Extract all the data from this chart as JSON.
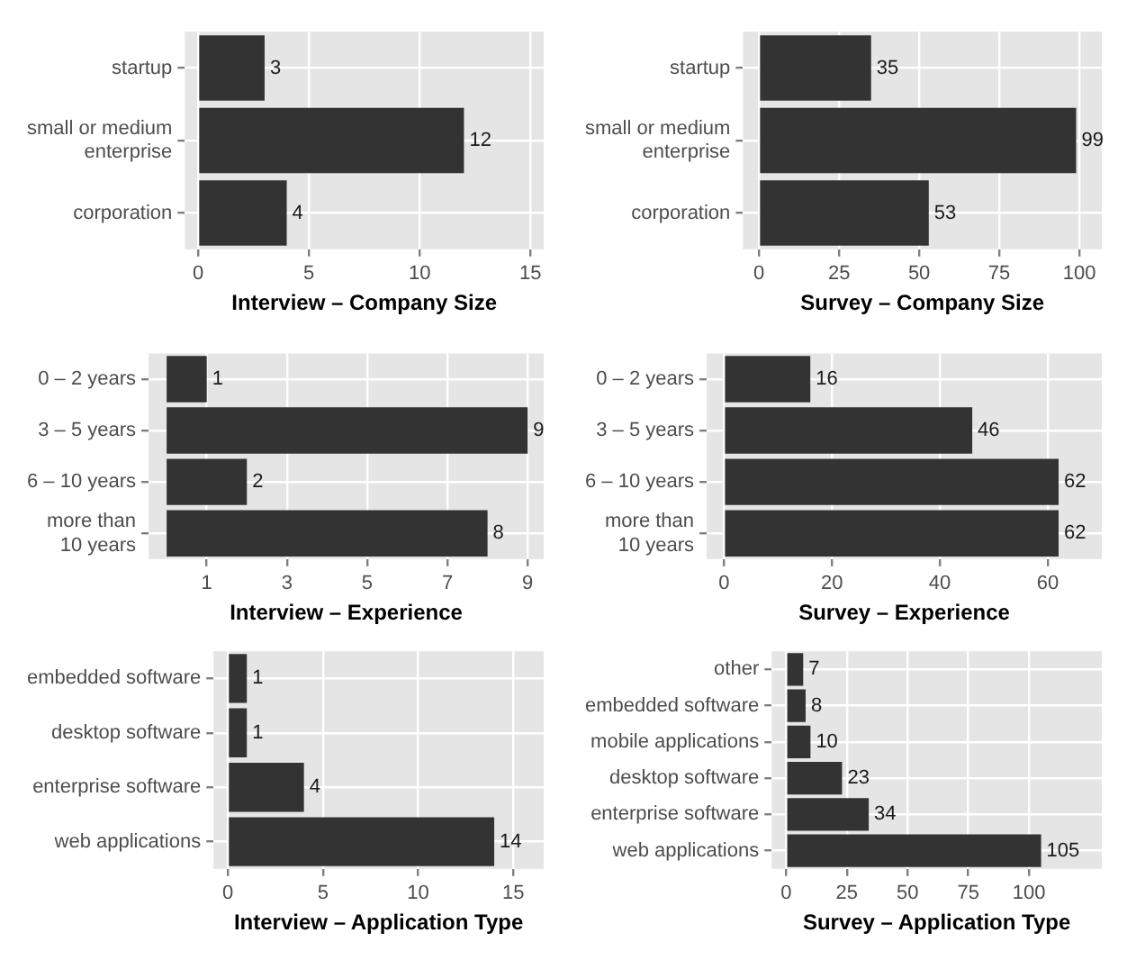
{
  "chart_data": [
    {
      "type": "bar",
      "orientation": "horizontal",
      "categories": [
        "startup",
        "small or medium enterprise",
        "corporation"
      ],
      "values": [
        3,
        12,
        4
      ],
      "color": "#333333",
      "xlim": [
        -0.6,
        15.6
      ],
      "xticks": [
        0,
        5,
        10,
        15
      ],
      "xlabel": "Interview – Company Size",
      "grid": true,
      "data_labels": true
    },
    {
      "type": "bar",
      "orientation": "horizontal",
      "categories": [
        "startup",
        "small or medium enterprise",
        "corporation"
      ],
      "values": [
        35,
        99,
        53
      ],
      "color": "#333333",
      "xlim": [
        -5,
        107
      ],
      "xticks": [
        0,
        25,
        50,
        75,
        100
      ],
      "xlabel": "Survey – Company Size",
      "grid": true,
      "data_labels": true
    },
    {
      "type": "bar",
      "orientation": "horizontal",
      "categories": [
        "0 – 2 years",
        "3 – 5 years",
        "6 – 10 years",
        "more than 10 years"
      ],
      "values": [
        1,
        9,
        2,
        8
      ],
      "color": "#333333",
      "xlim": [
        -0.45,
        9.4
      ],
      "xticks": [
        1,
        3,
        5,
        7,
        9
      ],
      "xlabel": "Interview – Experience",
      "grid": true,
      "data_labels": true
    },
    {
      "type": "bar",
      "orientation": "horizontal",
      "categories": [
        "0 – 2 years",
        "3 – 5 years",
        "6 – 10 years",
        "more than 10 years"
      ],
      "values": [
        16,
        46,
        62,
        62
      ],
      "color": "#333333",
      "xlim": [
        -3.2,
        70
      ],
      "xticks": [
        0,
        20,
        40,
        60
      ],
      "xlabel": "Survey – Experience",
      "grid": true,
      "data_labels": true
    },
    {
      "type": "bar",
      "orientation": "horizontal",
      "categories": [
        "embedded software",
        "desktop software",
        "enterprise software",
        "web applications"
      ],
      "values": [
        1,
        1,
        4,
        14
      ],
      "color": "#333333",
      "xlim": [
        -0.75,
        16.6
      ],
      "xticks": [
        0,
        5,
        10,
        15
      ],
      "xlabel": "Interview – Application Type",
      "grid": true,
      "data_labels": true
    },
    {
      "type": "bar",
      "orientation": "horizontal",
      "categories": [
        "other",
        "embedded software",
        "mobile applications",
        "desktop software",
        "enterprise software",
        "web applications"
      ],
      "values": [
        7,
        8,
        10,
        23,
        34,
        105
      ],
      "color": "#333333",
      "xlim": [
        -6,
        130
      ],
      "xticks": [
        0,
        25,
        50,
        75,
        100
      ],
      "xlabel": "Survey – Application Type",
      "grid": true,
      "data_labels": true
    }
  ]
}
